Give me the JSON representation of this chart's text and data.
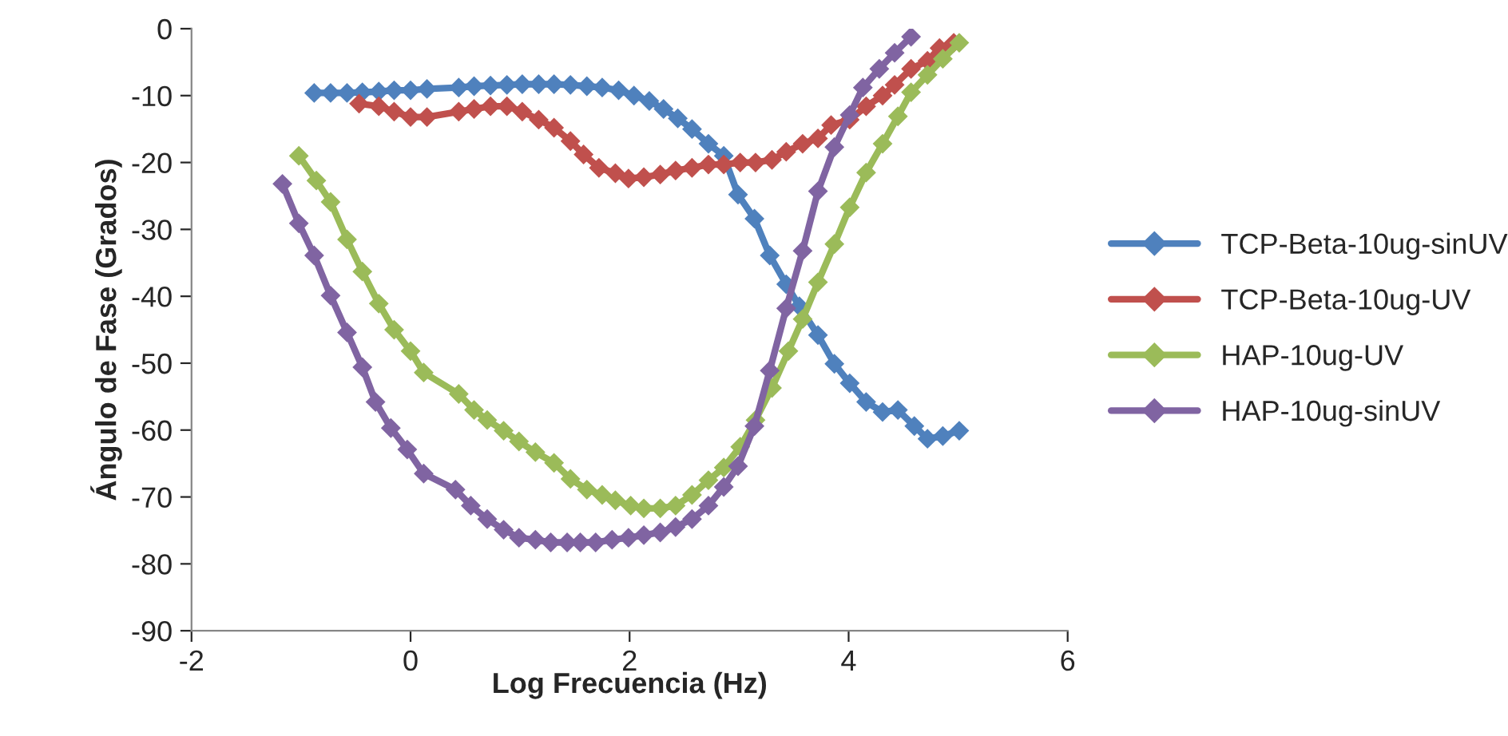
{
  "chart_data": {
    "type": "line",
    "xlabel": "Log Frecuencia (Hz)",
    "ylabel": "Ángulo de Fase (Grados)",
    "xlim": [
      -2,
      6
    ],
    "xticks": [
      -2,
      0,
      2,
      4,
      6
    ],
    "ylim": [
      -90,
      0
    ],
    "yticks": [
      -90,
      -80,
      -70,
      -60,
      -50,
      -40,
      -30,
      -20,
      -10,
      0
    ],
    "grid": false,
    "legend": "right",
    "marker": "diamond",
    "line_style": "solid",
    "series": [
      {
        "name": "TCP-Beta-10ug-sinUV",
        "color": "#4f81bd",
        "x": [
          -0.88,
          -0.73,
          -0.58,
          -0.44,
          -0.29,
          -0.15,
          0,
          0.15,
          0.44,
          0.58,
          0.73,
          0.88,
          1.02,
          1.17,
          1.31,
          1.46,
          1.61,
          1.75,
          1.9,
          2.04,
          2.18,
          2.31,
          2.44,
          2.57,
          2.72,
          2.86,
          2.99,
          3.14,
          3.28,
          3.43,
          3.55,
          3.72,
          3.87,
          4.01,
          4.16,
          4.31,
          4.45,
          4.6,
          4.72,
          4.86,
          5.01
        ],
        "values": [
          -9.6,
          -9.6,
          -9.6,
          -9.5,
          -9.4,
          -9.2,
          -9.2,
          -9.0,
          -8.8,
          -8.6,
          -8.5,
          -8.4,
          -8.3,
          -8.3,
          -8.3,
          -8.4,
          -8.6,
          -8.8,
          -9.2,
          -10.0,
          -10.8,
          -12.0,
          -13.4,
          -15.0,
          -17.2,
          -19.0,
          -24.8,
          -28.4,
          -33.9,
          -38.2,
          -41.5,
          -45.8,
          -50.1,
          -53.0,
          -55.8,
          -57.3,
          -57.0,
          -59.4,
          -61.3,
          -60.9,
          -60.1
        ]
      },
      {
        "name": "TCP-Beta-10ug-UV",
        "color": "#c0504d",
        "x": [
          -0.47,
          -0.29,
          -0.15,
          0,
          0.15,
          0.44,
          0.58,
          0.73,
          0.88,
          1.02,
          1.17,
          1.31,
          1.46,
          1.58,
          1.72,
          1.87,
          1.99,
          2.13,
          2.28,
          2.42,
          2.57,
          2.72,
          2.86,
          3.01,
          3.15,
          3.3,
          3.43,
          3.58,
          3.72,
          3.84,
          4.01,
          4.16,
          4.31,
          4.42,
          4.57,
          4.72,
          4.83,
          4.96
        ],
        "values": [
          -11.2,
          -11.6,
          -12.4,
          -13.2,
          -13.2,
          -12.4,
          -12.0,
          -11.6,
          -11.6,
          -12.4,
          -13.6,
          -14.8,
          -16.8,
          -18.8,
          -20.8,
          -21.6,
          -22.4,
          -22.2,
          -21.8,
          -21.2,
          -20.8,
          -20.3,
          -20.3,
          -20.0,
          -20.0,
          -19.6,
          -18.4,
          -17.2,
          -16.4,
          -14.4,
          -13.6,
          -11.6,
          -10.0,
          -8.4,
          -6.0,
          -4.8,
          -2.9,
          -2.1
        ]
      },
      {
        "name": "HAP-10ug-UV",
        "color": "#9bbb59",
        "x": [
          -1.02,
          -0.86,
          -0.73,
          -0.58,
          -0.44,
          -0.29,
          -0.15,
          0,
          0.12,
          0.44,
          0.58,
          0.7,
          0.85,
          0.99,
          1.14,
          1.31,
          1.46,
          1.61,
          1.75,
          1.87,
          2.01,
          2.13,
          2.28,
          2.42,
          2.57,
          2.72,
          2.86,
          3.01,
          3.15,
          3.3,
          3.45,
          3.58,
          3.72,
          3.87,
          4.01,
          4.16,
          4.31,
          4.45,
          4.57,
          4.72,
          4.86,
          5.01
        ],
        "values": [
          -19,
          -22.7,
          -25.9,
          -31.5,
          -36.3,
          -41.1,
          -45.0,
          -48.2,
          -51.4,
          -54.6,
          -57.0,
          -58.5,
          -60.1,
          -61.7,
          -63.3,
          -64.9,
          -67.3,
          -68.9,
          -69.7,
          -70.5,
          -71.3,
          -71.7,
          -71.7,
          -71.3,
          -69.7,
          -67.5,
          -65.6,
          -62.5,
          -58.5,
          -53.7,
          -48.2,
          -43.4,
          -37.9,
          -32.2,
          -26.7,
          -21.5,
          -17.2,
          -13.1,
          -9.5,
          -6.9,
          -4.5,
          -2.1
        ]
      },
      {
        "name": "HAP-10ug-sinUV",
        "color": "#8064a2",
        "x": [
          -1.17,
          -1.02,
          -0.88,
          -0.73,
          -0.58,
          -0.44,
          -0.32,
          -0.18,
          -0.03,
          0.12,
          0.41,
          0.55,
          0.7,
          0.85,
          0.99,
          1.14,
          1.28,
          1.43,
          1.55,
          1.69,
          1.84,
          1.99,
          2.13,
          2.28,
          2.42,
          2.57,
          2.72,
          2.86,
          2.99,
          3.14,
          3.28,
          3.43,
          3.58,
          3.72,
          3.87,
          4.01,
          4.13,
          4.28,
          4.42,
          4.57
        ],
        "values": [
          -23.2,
          -29.1,
          -33.9,
          -39.9,
          -45.4,
          -50.6,
          -55.8,
          -59.7,
          -62.9,
          -66.5,
          -68.9,
          -71.3,
          -73.3,
          -74.9,
          -76.1,
          -76.4,
          -76.8,
          -76.8,
          -76.8,
          -76.8,
          -76.4,
          -76.1,
          -75.7,
          -75.3,
          -74.5,
          -73.3,
          -71.3,
          -68.5,
          -65.4,
          -59.4,
          -51.1,
          -41.8,
          -33.2,
          -24.3,
          -17.7,
          -12.9,
          -8.8,
          -6.0,
          -3.6,
          -1.2
        ]
      }
    ]
  }
}
